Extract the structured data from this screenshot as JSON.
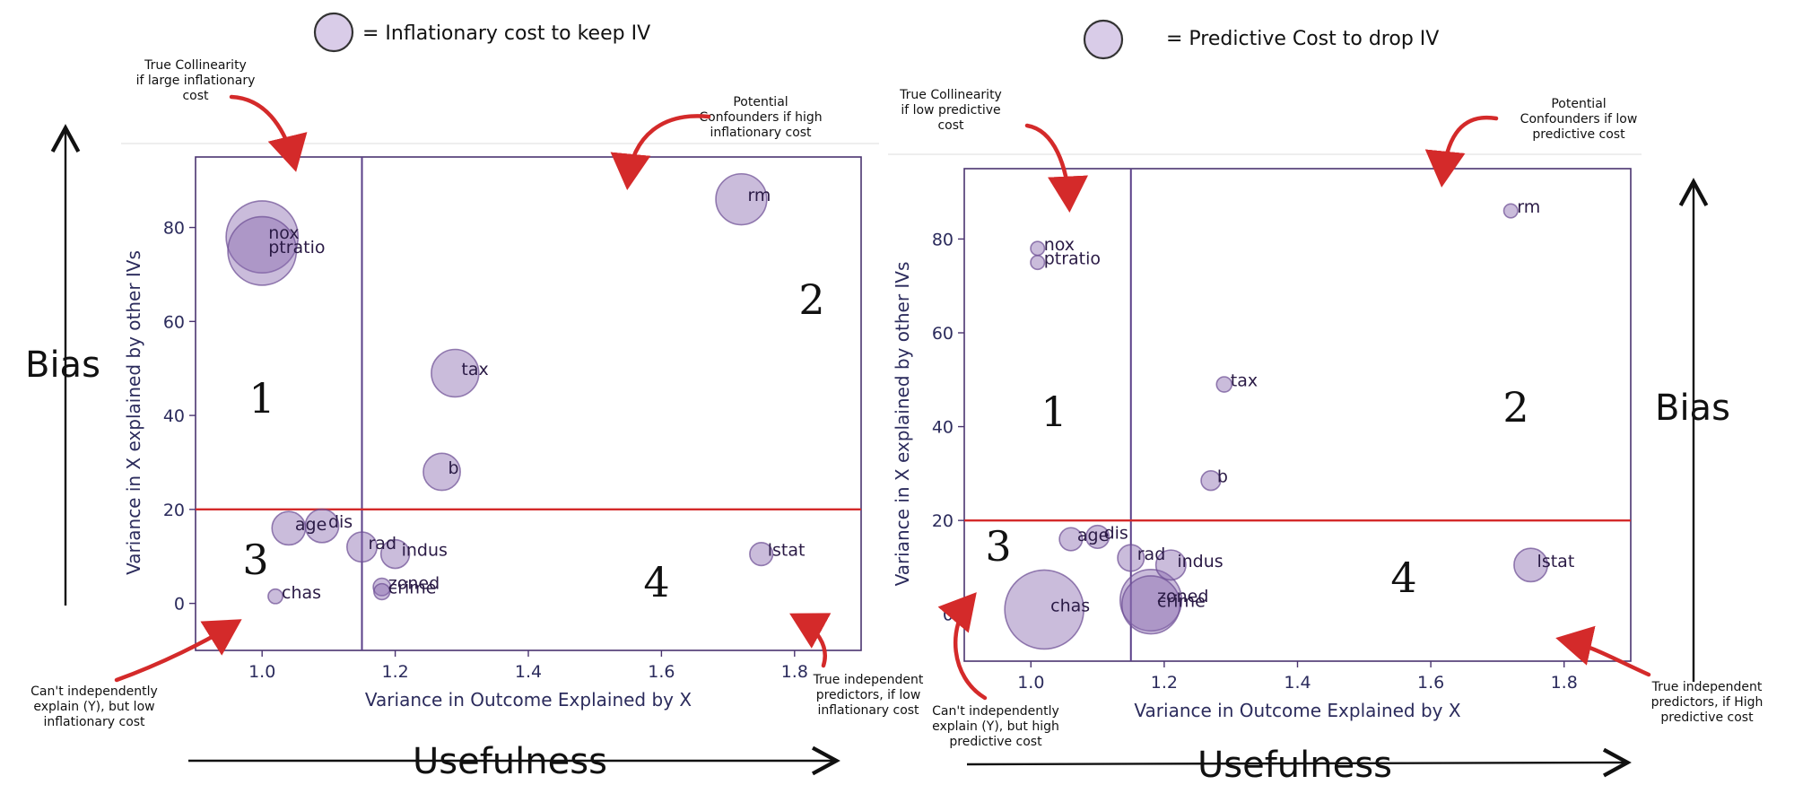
{
  "legends": [
    {
      "text": "= Inflationary cost to keep IV"
    },
    {
      "text": "= Predictive Cost to drop IV"
    }
  ],
  "charts": [
    {
      "id": "left",
      "big_bias": "Bias",
      "big_usefulness": "Usefulness",
      "quadrants": [
        "1",
        "2",
        "3",
        "4"
      ],
      "notes": [
        {
          "lines": [
            "True Collinearity",
            "if large inflationary",
            "cost"
          ]
        },
        {
          "lines": [
            "Potential",
            "Confounders if high",
            "inflationary cost"
          ]
        },
        {
          "lines": [
            "Can't independently",
            "explain (Y), but low",
            "inflationary cost"
          ]
        },
        {
          "lines": [
            "True independent",
            "predictors, if low",
            "inflationary cost"
          ]
        }
      ]
    },
    {
      "id": "right",
      "big_bias": "Bias",
      "big_usefulness": "Usefulness",
      "quadrants": [
        "1",
        "2",
        "3",
        "4"
      ],
      "notes": [
        {
          "lines": [
            "True Collinearity",
            "if low predictive",
            "cost"
          ]
        },
        {
          "lines": [
            "Potential",
            "Confounders if low",
            "predictive cost"
          ]
        },
        {
          "lines": [
            "Can't independently",
            "explain (Y), but high",
            "predictive cost"
          ]
        },
        {
          "lines": [
            "True independent",
            "predictors, if High",
            "predictive cost"
          ]
        }
      ]
    }
  ],
  "chart_data": [
    {
      "type": "scatter",
      "title": "",
      "xlabel": "Variance in Outcome Explained by X",
      "ylabel": "Variance in X explained by other IVs",
      "xlim": [
        0.9,
        1.9
      ],
      "ylim": [
        -10,
        95
      ],
      "xticks": [
        "1.0",
        "1.2",
        "1.4",
        "1.6",
        "1.8"
      ],
      "yticks": [
        "0",
        "20",
        "40",
        "60",
        "80"
      ],
      "vline_x": 1.15,
      "hline_y": 20,
      "size_meaning": "Inflationary cost to keep IV",
      "points": [
        {
          "label": "nox",
          "x": 1.0,
          "y": 78,
          "size": 0.9
        },
        {
          "label": "ptratio",
          "x": 1.0,
          "y": 75,
          "size": 0.85
        },
        {
          "label": "rm",
          "x": 1.72,
          "y": 86,
          "size": 0.6
        },
        {
          "label": "tax",
          "x": 1.29,
          "y": 49,
          "size": 0.55
        },
        {
          "label": "b",
          "x": 1.27,
          "y": 28,
          "size": 0.4
        },
        {
          "label": "age",
          "x": 1.04,
          "y": 16,
          "size": 0.35
        },
        {
          "label": "dis",
          "x": 1.09,
          "y": 16.5,
          "size": 0.35
        },
        {
          "label": "rad",
          "x": 1.15,
          "y": 12,
          "size": 0.3
        },
        {
          "label": "indus",
          "x": 1.2,
          "y": 10.5,
          "size": 0.28
        },
        {
          "label": "lstat",
          "x": 1.75,
          "y": 10.5,
          "size": 0.2
        },
        {
          "label": "zoned",
          "x": 1.18,
          "y": 3.5,
          "size": 0.12
        },
        {
          "label": "crime",
          "x": 1.18,
          "y": 2.5,
          "size": 0.1
        },
        {
          "label": "chas",
          "x": 1.02,
          "y": 1.5,
          "size": 0.08
        }
      ]
    },
    {
      "type": "scatter",
      "title": "",
      "xlabel": "Variance in Outcome Explained by X",
      "ylabel": "Variance in X explained by other IVs",
      "xlim": [
        0.9,
        1.9
      ],
      "ylim": [
        -10,
        95
      ],
      "xticks": [
        "1.0",
        "1.2",
        "1.4",
        "1.6",
        "1.8"
      ],
      "yticks": [
        "0",
        "20",
        "40",
        "60",
        "80"
      ],
      "vline_x": 1.15,
      "hline_y": 20,
      "size_meaning": "Predictive Cost to drop IV",
      "points": [
        {
          "label": "nox",
          "x": 1.01,
          "y": 78,
          "size": 0.07
        },
        {
          "label": "ptratio",
          "x": 1.01,
          "y": 75,
          "size": 0.07
        },
        {
          "label": "rm",
          "x": 1.72,
          "y": 86,
          "size": 0.07
        },
        {
          "label": "tax",
          "x": 1.29,
          "y": 49,
          "size": 0.09
        },
        {
          "label": "b",
          "x": 1.27,
          "y": 28.5,
          "size": 0.15
        },
        {
          "label": "age",
          "x": 1.06,
          "y": 16,
          "size": 0.2
        },
        {
          "label": "dis",
          "x": 1.1,
          "y": 16.5,
          "size": 0.2
        },
        {
          "label": "rad",
          "x": 1.15,
          "y": 12,
          "size": 0.25
        },
        {
          "label": "indus",
          "x": 1.21,
          "y": 10.5,
          "size": 0.3
        },
        {
          "label": "lstat",
          "x": 1.75,
          "y": 10.5,
          "size": 0.35
        },
        {
          "label": "zoned",
          "x": 1.18,
          "y": 3,
          "size": 0.75
        },
        {
          "label": "crime",
          "x": 1.18,
          "y": 2,
          "size": 0.7
        },
        {
          "label": "chas",
          "x": 1.02,
          "y": 1,
          "size": 1.0
        }
      ]
    }
  ]
}
